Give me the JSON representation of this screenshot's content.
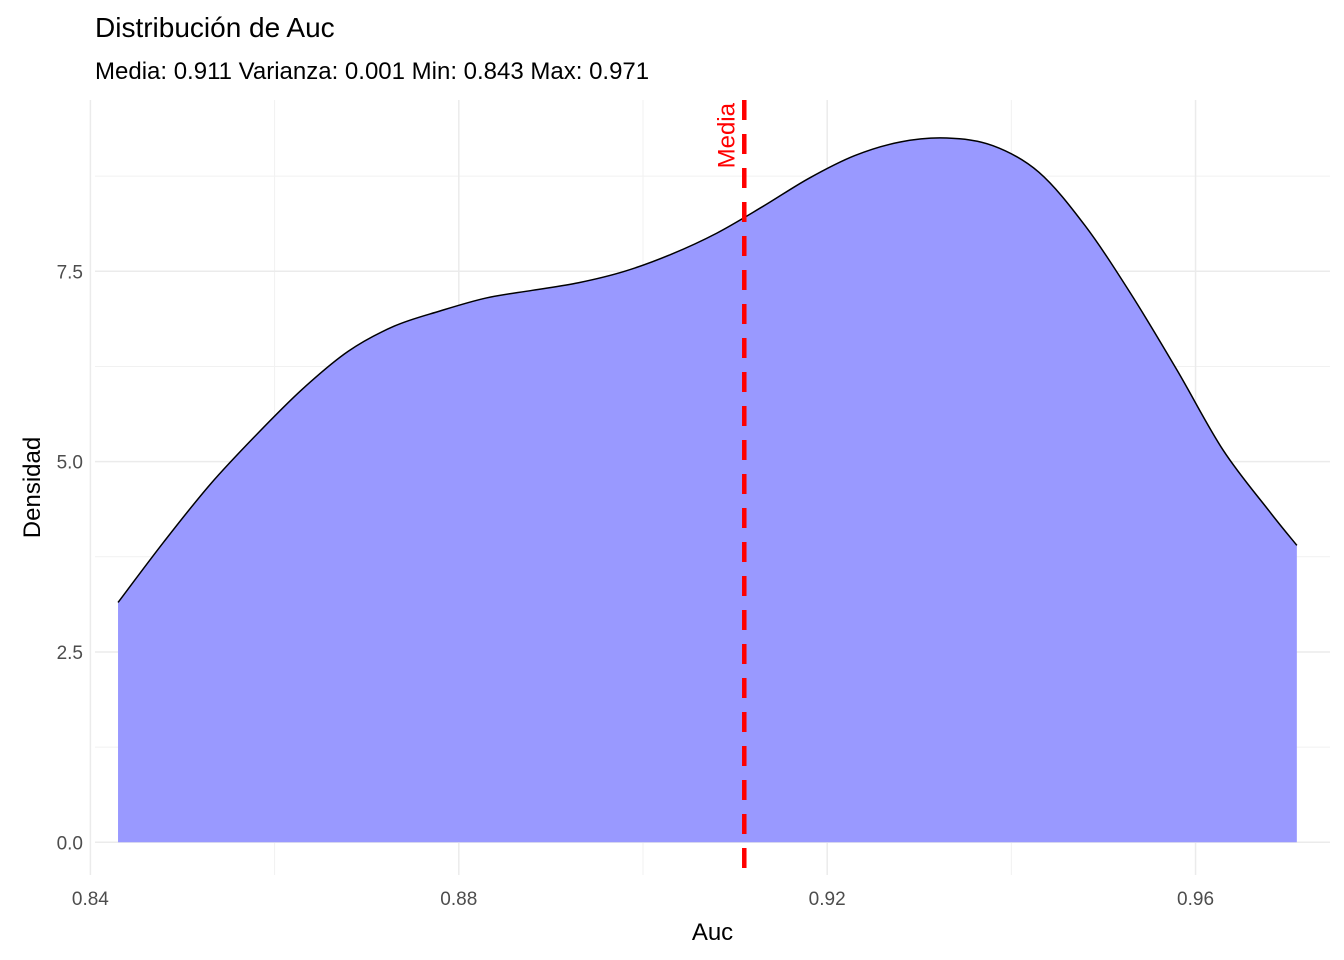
{
  "chart_data": {
    "type": "area",
    "title": "Distribución de Auc",
    "subtitle": "Media: 0.911 Varianza: 0.001 Min: 0.843 Max: 0.971",
    "xlabel": "Auc",
    "ylabel": "Densidad",
    "xlim": [
      0.8405,
      0.9746
    ],
    "ylim": [
      -0.43,
      9.75
    ],
    "x_ticks": [
      0.84,
      0.88,
      0.92,
      0.96
    ],
    "x_tick_labels": [
      "0.84",
      "0.88",
      "0.92",
      "0.96"
    ],
    "y_ticks": [
      0,
      2.5,
      5,
      7.5
    ],
    "y_tick_labels": [
      "0.0",
      "2.5",
      "5.0",
      "7.5"
    ],
    "grid": true,
    "series": [
      {
        "x": [
          0.843,
          0.848,
          0.853,
          0.858,
          0.863,
          0.868,
          0.873,
          0.878,
          0.883,
          0.888,
          0.893,
          0.898,
          0.903,
          0.908,
          0.913,
          0.918,
          0.923,
          0.928,
          0.933,
          0.938,
          0.943,
          0.948,
          0.953,
          0.958,
          0.963,
          0.968,
          0.971
        ],
        "y": [
          3.15,
          3.95,
          4.7,
          5.35,
          5.95,
          6.45,
          6.78,
          6.98,
          7.15,
          7.25,
          7.35,
          7.5,
          7.72,
          8.0,
          8.35,
          8.72,
          9.02,
          9.2,
          9.25,
          9.15,
          8.8,
          8.1,
          7.2,
          6.2,
          5.15,
          4.35,
          3.9
        ],
        "fill": "#9999ff",
        "line": "#000000"
      }
    ],
    "reference_line": {
      "x": 0.911,
      "label": "Media",
      "color": "#ff0000",
      "style": "dashed"
    }
  }
}
